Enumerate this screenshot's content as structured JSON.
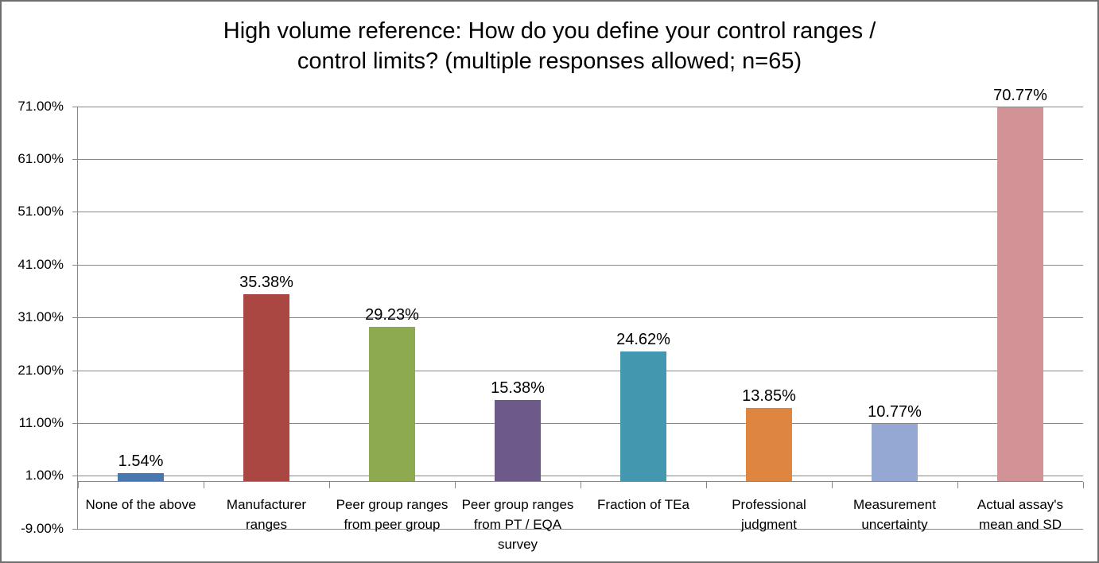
{
  "chart_data": {
    "type": "bar",
    "title": "High volume reference: How do you define your control ranges / control limits? (multiple responses allowed; n=65)",
    "title_lines": [
      "High volume reference: How do you define your control ranges /",
      "control limits? (multiple responses allowed; n=65)"
    ],
    "categories": [
      "None of the above",
      "Manufacturer ranges",
      "Peer group ranges from peer group",
      "Peer group ranges from PT / EQA survey",
      "Fraction of TEa",
      "Professional judgment",
      "Measurement uncertainty",
      "Actual assay's mean and SD"
    ],
    "category_lines": [
      [
        "None of the above"
      ],
      [
        "Manufacturer",
        "ranges"
      ],
      [
        "Peer group ranges",
        "from peer group"
      ],
      [
        "Peer group ranges",
        "from PT / EQA",
        "survey"
      ],
      [
        "Fraction of TEa"
      ],
      [
        "Professional",
        "judgment"
      ],
      [
        "Measurement",
        "uncertainty"
      ],
      [
        "Actual assay's",
        "mean and SD"
      ]
    ],
    "values": [
      1.54,
      35.38,
      29.23,
      15.38,
      24.62,
      13.85,
      10.77,
      70.77
    ],
    "value_labels": [
      "1.54%",
      "35.38%",
      "29.23%",
      "15.38%",
      "24.62%",
      "13.85%",
      "10.77%",
      "70.77%"
    ],
    "bar_colors": [
      "#4878AF",
      "#AA4743",
      "#8DAA4F",
      "#6D5A8B",
      "#4397AE",
      "#DE8640",
      "#94A8D3",
      "#D29396"
    ],
    "y_ticks": [
      "71.00%",
      "61.00%",
      "51.00%",
      "41.00%",
      "31.00%",
      "21.00%",
      "11.00%",
      "1.00%",
      "-9.00%"
    ],
    "y_tick_values": [
      71,
      61,
      51,
      41,
      31,
      21,
      11,
      1,
      -9
    ],
    "ylim": [
      -9,
      71
    ],
    "xlabel": "",
    "ylabel": "",
    "grid": true,
    "legend": "none"
  },
  "colors": {
    "grid": "#878787",
    "axis": "#878787",
    "border": "#6f6f6f",
    "text": "#000000",
    "background": "#ffffff"
  }
}
